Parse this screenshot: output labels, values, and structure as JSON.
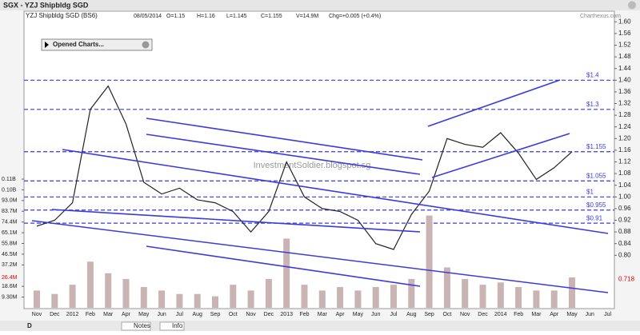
{
  "window": {
    "title": "SGX - YZJ Shipbldg SGD",
    "symbol": "YZJ Shipbldg SGD (BS6)",
    "date": "08/05/2014",
    "open": "O=1.15",
    "high": "H=1.16",
    "low": "L=1.145",
    "close": "C=1.155",
    "volume": "V=14.9M",
    "change": "Chg=+0.005 (+0.4%)",
    "brand": "Charthexus.com",
    "panel": "Opened Charts...",
    "watermark": "InvestmentSoldier.blogspot.sg"
  },
  "toolbar": {
    "period": "D",
    "notes": "Notes",
    "info": "Info"
  },
  "chart_data": {
    "type": "line",
    "categories": [
      "Nov",
      "Dec",
      "2012",
      "Feb",
      "Mar",
      "Apr",
      "May",
      "Jun",
      "Jul",
      "Aug",
      "Sep",
      "Oct",
      "Nov",
      "Dec",
      "2013",
      "Feb",
      "Mar",
      "Apr",
      "May",
      "Jun",
      "Jul",
      "Aug",
      "Sep",
      "Oct",
      "Nov",
      "Dec",
      "2014",
      "Feb",
      "Mar",
      "Apr",
      "May",
      "Jun",
      "Jul"
    ],
    "series": [
      {
        "name": "YZJ Shipbldg SGD",
        "color": "#222222",
        "values": [
          0.9,
          0.92,
          0.98,
          1.3,
          1.38,
          1.25,
          1.05,
          1.01,
          1.03,
          0.99,
          0.98,
          0.95,
          0.88,
          0.95,
          1.12,
          1.0,
          0.96,
          0.95,
          0.92,
          0.84,
          0.82,
          0.94,
          1.02,
          1.2,
          1.18,
          1.17,
          1.22,
          1.15,
          1.06,
          1.1,
          1.155,
          null,
          null
        ]
      },
      {
        "name": "Volume",
        "color": "#c9b3b3",
        "axis": "y2",
        "values": [
          15000000,
          12000000,
          20000000,
          40000000,
          30000000,
          25000000,
          18000000,
          15000000,
          12000000,
          12000000,
          10000000,
          20000000,
          15000000,
          25000000,
          60000000,
          20000000,
          15000000,
          18000000,
          15000000,
          18000000,
          20000000,
          25000000,
          80000000,
          35000000,
          25000000,
          20000000,
          22000000,
          18000000,
          15000000,
          15000000,
          26400000,
          null,
          null
        ]
      }
    ],
    "ylim": [
      0.62,
      1.62
    ],
    "yticks": [
      {
        "value": 0.8,
        "label": "0.80"
      },
      0.84,
      0.88,
      0.92,
      0.96,
      {
        "value": 1.0,
        "label": "1.00"
      },
      1.04,
      1.08,
      1.12,
      1.16,
      {
        "value": 1.2,
        "label": "1.20"
      },
      1.24,
      1.28,
      1.32,
      1.36,
      {
        "value": 1.4,
        "label": "1.40"
      },
      1.44,
      1.48,
      1.52,
      1.56,
      {
        "value": 1.6,
        "label": "1.60"
      }
    ],
    "y2lim": [
      0,
      253000000
    ],
    "y2ticks": [
      {
        "value": 9300000,
        "label": "9.30M"
      },
      {
        "value": 18600000,
        "label": "18.6M"
      },
      {
        "value": 37200000,
        "label": "37.2M"
      },
      {
        "value": 46500000,
        "label": "46.5M"
      },
      {
        "value": 55800000,
        "label": "55.8M"
      },
      {
        "value": 65100000,
        "label": "65.1M"
      },
      {
        "value": 74400000,
        "label": "74.4M"
      },
      {
        "value": 83700000,
        "label": "83.7M"
      },
      {
        "value": 93000000,
        "label": "93.0M"
      },
      {
        "value": 102300000,
        "label": "0.10B"
      },
      {
        "value": 111600000,
        "label": "0.11B"
      }
    ],
    "volume_marker": {
      "value": 26400000,
      "label": "26.4M",
      "color": "#e00000"
    },
    "price_marker": {
      "value": 0.718,
      "color": "#e00000"
    },
    "levels": [
      {
        "value": 1.4,
        "label": "$1.4"
      },
      {
        "value": 1.3,
        "label": "$1.3"
      },
      {
        "value": 1.155,
        "label": "$1.155"
      },
      {
        "value": 1.055,
        "label": "$1.055"
      },
      {
        "value": 1,
        "label": "$1"
      },
      {
        "value": 0.955,
        "label": "$0.955"
      },
      {
        "value": 0.91,
        "label": "$0.91"
      }
    ],
    "level_color": "#3a3ae0"
  }
}
